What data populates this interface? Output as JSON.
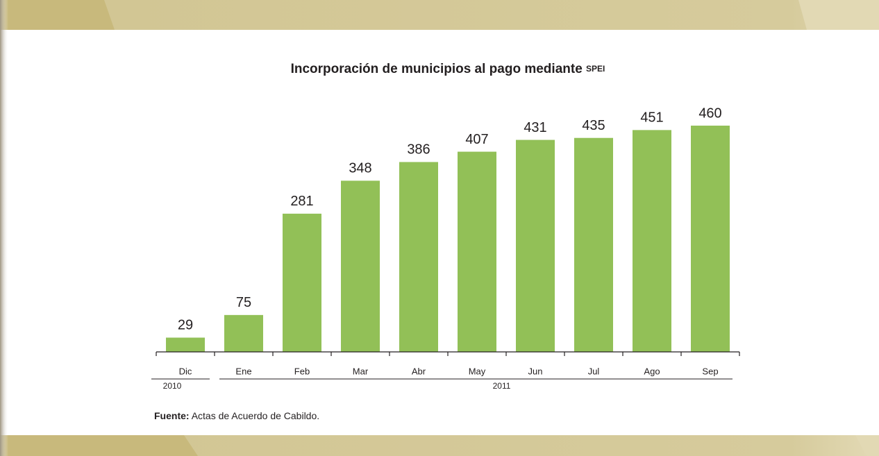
{
  "chart_data": {
    "type": "bar",
    "title": "Incorporación de municipios al pago mediante",
    "title_acronym": "SPEI",
    "categories": [
      "Dic",
      "Ene",
      "Feb",
      "Mar",
      "Abr",
      "May",
      "Jun",
      "Jul",
      "Ago",
      "Sep"
    ],
    "values": [
      29,
      75,
      281,
      348,
      386,
      407,
      431,
      435,
      451,
      460
    ],
    "color": "#92c057",
    "ylim": [
      0,
      460
    ],
    "x_groups": [
      "2010",
      "2011"
    ],
    "source_label": "Fuente:",
    "source_text": "Actas de Acuerdo de Cabildo."
  }
}
